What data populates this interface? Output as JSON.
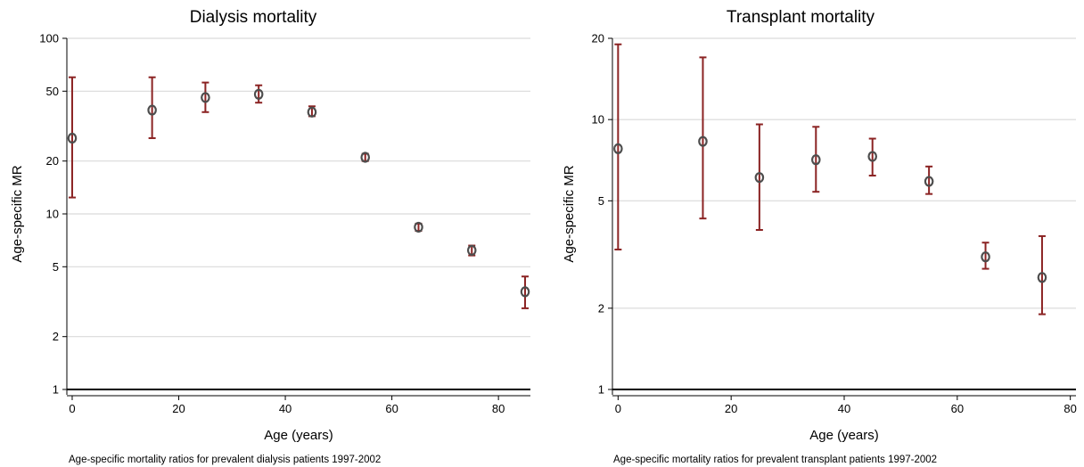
{
  "chart_data": [
    {
      "type": "scatter",
      "title": "Dialysis mortality",
      "xlabel": "Age (years)",
      "ylabel": "Age-specific MR",
      "note": "Age-specific mortality ratios for prevalent dialysis patients 1997-2002",
      "y_scale": "log",
      "ylim": [
        1,
        100
      ],
      "xlim": [
        -1,
        86
      ],
      "x_ticks": [
        0,
        20,
        40,
        60,
        80
      ],
      "y_ticks": [
        1,
        2,
        5,
        10,
        20,
        50,
        100
      ],
      "grid": "horizontal",
      "points": [
        {
          "x": 0,
          "y": 27,
          "lower": 12.4,
          "upper": 60
        },
        {
          "x": 15,
          "y": 39,
          "lower": 27,
          "upper": 60
        },
        {
          "x": 25,
          "y": 46,
          "lower": 38,
          "upper": 56
        },
        {
          "x": 35,
          "y": 48,
          "lower": 43,
          "upper": 54
        },
        {
          "x": 45,
          "y": 38,
          "lower": 36,
          "upper": 41
        },
        {
          "x": 55,
          "y": 21,
          "lower": 20,
          "upper": 22
        },
        {
          "x": 65,
          "y": 8.4,
          "lower": 8.0,
          "upper": 8.8
        },
        {
          "x": 75,
          "y": 6.2,
          "lower": 5.8,
          "upper": 6.6
        },
        {
          "x": 85,
          "y": 3.6,
          "lower": 2.9,
          "upper": 4.4
        }
      ],
      "colors": {
        "marker": "#4d4d4d",
        "error_bar": "#8b2323",
        "grid": "#d9d9d9"
      }
    },
    {
      "type": "scatter",
      "title": "Transplant mortality",
      "xlabel": "Age (years)",
      "ylabel": "Age-specific MR",
      "note": "Age-specific mortality ratios for prevalent transplant patients 1997-2002",
      "y_scale": "log",
      "ylim": [
        1,
        20
      ],
      "xlim": [
        -1,
        81
      ],
      "x_ticks": [
        0,
        20,
        40,
        60,
        80
      ],
      "y_ticks": [
        1,
        2,
        5,
        10,
        20
      ],
      "grid": "horizontal",
      "points": [
        {
          "x": 0,
          "y": 7.8,
          "lower": 3.3,
          "upper": 19
        },
        {
          "x": 15,
          "y": 8.3,
          "lower": 4.3,
          "upper": 17
        },
        {
          "x": 25,
          "y": 6.1,
          "lower": 3.9,
          "upper": 9.6
        },
        {
          "x": 35,
          "y": 7.1,
          "lower": 5.4,
          "upper": 9.4
        },
        {
          "x": 45,
          "y": 7.3,
          "lower": 6.2,
          "upper": 8.5
        },
        {
          "x": 55,
          "y": 5.9,
          "lower": 5.3,
          "upper": 6.7
        },
        {
          "x": 65,
          "y": 3.1,
          "lower": 2.8,
          "upper": 3.5
        },
        {
          "x": 75,
          "y": 2.6,
          "lower": 1.9,
          "upper": 3.7
        }
      ],
      "colors": {
        "marker": "#4d4d4d",
        "error_bar": "#8b2323",
        "grid": "#d9d9d9"
      }
    }
  ]
}
